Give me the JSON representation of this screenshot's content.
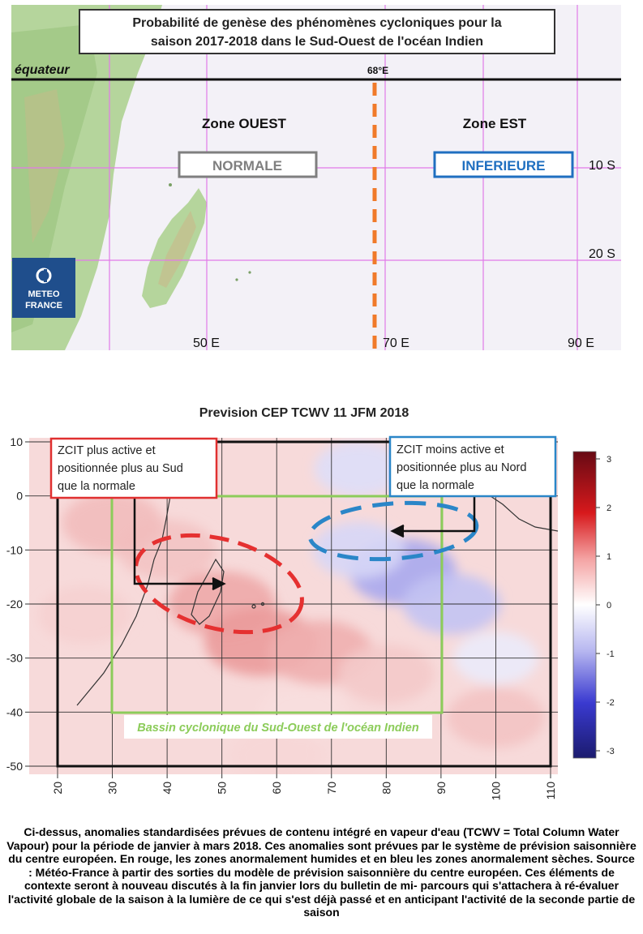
{
  "top_map": {
    "title_line1": "Probabilité de genèse des phénomènes cycloniques pour la",
    "title_line2": "saison 2017-2018 dans le Sud-Ouest de l'océan Indien",
    "equator_label": "équateur",
    "meridian_label": "68°E",
    "zone_west": {
      "title": "Zone OUEST",
      "status": "NORMALE",
      "color": "#7f7f7f"
    },
    "zone_east": {
      "title": "Zone EST",
      "status": "INFERIEURE",
      "color": "#1f6fc0"
    },
    "lat_labels": [
      "10 S",
      "20 S"
    ],
    "lon_labels": [
      "50 E",
      "70 E",
      "90 E"
    ],
    "logo": {
      "line1": "METEO",
      "line2": "FRANCE"
    },
    "colors": {
      "land": "#b8d8a0",
      "sea": "#f4f1f7",
      "grid": "#e277e8",
      "dash": "#f07a2a"
    }
  },
  "chart_data": {
    "type": "heatmap",
    "title": "Prevision CEP TCWV 11 JFM 2018",
    "x_ticks": [
      20,
      30,
      40,
      50,
      60,
      70,
      80,
      90,
      100,
      110
    ],
    "y_ticks": [
      10,
      0,
      -10,
      -20,
      -30,
      -40,
      -50
    ],
    "xlim": [
      18,
      111
    ],
    "ylim": [
      -52,
      11
    ],
    "colorbar": {
      "ticks": [
        3,
        2,
        1,
        0,
        -1,
        -2,
        -3
      ],
      "range": [
        -3,
        3
      ]
    },
    "grid": true,
    "annotations": [
      {
        "text_lines": [
          "ZCIT plus active et",
          "positionnée plus au Sud",
          "que la normale"
        ],
        "color": "#e03030"
      },
      {
        "text_lines": [
          "ZCIT moins active et",
          "positionnée plus au Nord",
          "que la normale"
        ],
        "color": "#2a86c8"
      },
      {
        "text_lines": [
          "Bassin cyclonique du Sud-Ouest de l'océan Indien"
        ],
        "color": "#8ccc5a"
      }
    ],
    "anomaly_regions": [
      {
        "center": [
          50,
          -20
        ],
        "value": 1.3
      },
      {
        "center": [
          40,
          -10
        ],
        "value": 0.9
      },
      {
        "center": [
          57,
          -27
        ],
        "value": 1.5
      },
      {
        "center": [
          68,
          -29
        ],
        "value": 1.2
      },
      {
        "center": [
          80,
          -33
        ],
        "value": 0.8
      },
      {
        "center": [
          30,
          -5
        ],
        "value": 1.0
      },
      {
        "center": [
          25,
          -22
        ],
        "value": 0.7
      },
      {
        "center": [
          65,
          -40
        ],
        "value": 0.5
      },
      {
        "center": [
          100,
          -41
        ],
        "value": 0.9
      },
      {
        "center": [
          60,
          -48
        ],
        "value": 0.6
      },
      {
        "center": [
          83,
          -14
        ],
        "value": -1.3
      },
      {
        "center": [
          92,
          -20
        ],
        "value": -0.9
      },
      {
        "center": [
          75,
          -10
        ],
        "value": -0.6
      },
      {
        "center": [
          75,
          5
        ],
        "value": -0.5
      },
      {
        "center": [
          100,
          -30
        ],
        "value": -0.3
      }
    ]
  },
  "caption": {
    "text": "Ci-dessus, anomalies standardisées prévues de contenu intégré en vapeur d'eau (TCWV = Total Column Water Vapour) pour la période de janvier à mars 2018. Ces anomalies sont prévues par le système de prévision saisonnière du centre européen. En rouge, les zones anormalement humides et en bleu les zones anormalement sèches. Source : Météo-France à partir des sorties du modèle de prévision saisonnière du centre européen. Ces éléments de contexte seront à nouveau discutés à la fin janvier lors du bulletin de mi- parcours qui s'attachera à ré-évaluer l'activité globale de la saison à la lumière de ce qui s'est déjà passé et en anticipant l'activité de la seconde partie de saison"
  }
}
